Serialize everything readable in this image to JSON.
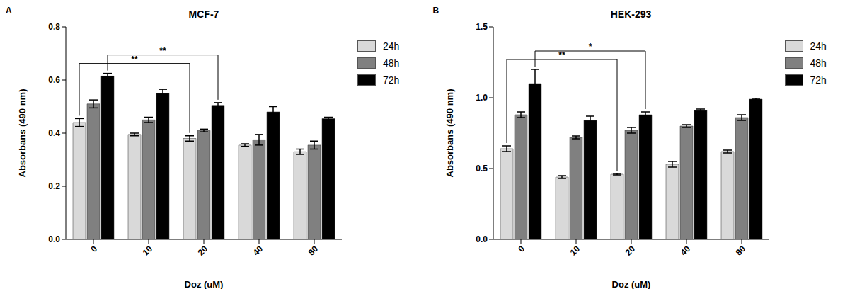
{
  "chart_data": [
    {
      "type": "bar",
      "panel": "A",
      "title": "MCF-7",
      "x_label": "Doz (uM)",
      "y_label": "Absorbans (490 nm)",
      "categories": [
        "0",
        "10",
        "20",
        "40",
        "80"
      ],
      "series": [
        {
          "name": "24h",
          "color": "#d9d9d9",
          "values": [
            0.44,
            0.395,
            0.38,
            0.355,
            0.33
          ],
          "errors": [
            0.015,
            0.005,
            0.01,
            0.005,
            0.01
          ]
        },
        {
          "name": "48h",
          "color": "#808080",
          "values": [
            0.51,
            0.45,
            0.41,
            0.375,
            0.355
          ],
          "errors": [
            0.015,
            0.01,
            0.005,
            0.02,
            0.015
          ]
        },
        {
          "name": "72h",
          "color": "#000000",
          "values": [
            0.615,
            0.55,
            0.505,
            0.48,
            0.455
          ],
          "errors": [
            0.01,
            0.015,
            0.01,
            0.02,
            0.005
          ]
        }
      ],
      "ylim": [
        0,
        0.8
      ],
      "yticks": [
        {
          "value": 0,
          "label": "0.0"
        },
        {
          "value": 0.2,
          "label": "0.2"
        },
        {
          "value": 0.4,
          "label": "0.4"
        },
        {
          "value": 0.6,
          "label": "0.6"
        },
        {
          "value": 0.8,
          "label": "0.8"
        }
      ],
      "legend": "right",
      "annotations": [
        {
          "from": {
            "category": "0",
            "series": "24h"
          },
          "to": {
            "category": "20",
            "series": "24h"
          },
          "label": "**"
        },
        {
          "from": {
            "category": "0",
            "series": "72h"
          },
          "to": {
            "category": "20",
            "series": "72h"
          },
          "label": "**"
        }
      ]
    },
    {
      "type": "bar",
      "panel": "B",
      "title": "HEK-293",
      "x_label": "Doz (uM)",
      "y_label": "Absorbans (490 nm)",
      "categories": [
        "0",
        "10",
        "20",
        "40",
        "80"
      ],
      "series": [
        {
          "name": "24h",
          "color": "#d9d9d9",
          "values": [
            0.64,
            0.44,
            0.46,
            0.53,
            0.62
          ],
          "errors": [
            0.02,
            0.01,
            0.005,
            0.02,
            0.01
          ]
        },
        {
          "name": "48h",
          "color": "#808080",
          "values": [
            0.88,
            0.72,
            0.77,
            0.8,
            0.86
          ],
          "errors": [
            0.02,
            0.01,
            0.02,
            0.01,
            0.02
          ]
        },
        {
          "name": "72h",
          "color": "#000000",
          "values": [
            1.1,
            0.84,
            0.88,
            0.91,
            0.99
          ],
          "errors": [
            0.1,
            0.03,
            0.02,
            0.01,
            0.005
          ]
        }
      ],
      "ylim": [
        0,
        1.5
      ],
      "yticks": [
        {
          "value": 0,
          "label": "0.0"
        },
        {
          "value": 0.5,
          "label": "0.5"
        },
        {
          "value": 1,
          "label": "1.0"
        },
        {
          "value": 1.5,
          "label": "1.5"
        }
      ],
      "legend": "right",
      "annotations": [
        {
          "from": {
            "category": "0",
            "series": "24h"
          },
          "to": {
            "category": "20",
            "series": "24h"
          },
          "label": "**"
        },
        {
          "from": {
            "category": "0",
            "series": "72h"
          },
          "to": {
            "category": "20",
            "series": "72h"
          },
          "label": "*"
        }
      ]
    }
  ]
}
